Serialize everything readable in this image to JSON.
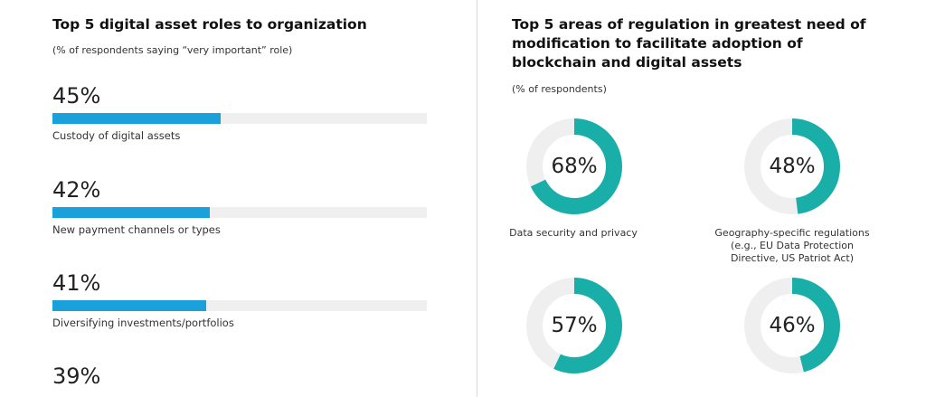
{
  "left_panel": {
    "title": "Top 5 digital asset roles to organization",
    "subtitle": "(% of respondents saying “very important” role)"
  },
  "right_panel": {
    "title_lines": [
      "Top 5 areas of regulation in greatest need of",
      "modification to facilitate adoption of",
      "blockchain and digital assets"
    ],
    "subtitle": "(% of respondents)"
  },
  "colors": {
    "bar_fill": "#1aa0db",
    "bar_track": "#efefef",
    "donut_fill": "#1aaea8",
    "donut_track": "#efefef",
    "divider": "#d9d9d9"
  },
  "chart_data": [
    {
      "type": "bar",
      "title": "Top 5 digital asset roles to organization",
      "subtitle": "(% of respondents saying “very important” role)",
      "categories": [
        "Custody of digital assets",
        "New payment channels or types",
        "Diversifying investments/portfolios",
        ""
      ],
      "values": [
        45,
        42,
        41,
        39
      ],
      "value_labels": [
        "45%",
        "42%",
        "41%",
        "39%"
      ],
      "ylim": [
        0,
        100
      ]
    },
    {
      "type": "pie",
      "title": "Top 5 areas of regulation in greatest need of modification to facilitate adoption of blockchain and digital assets",
      "subtitle": "(% of respondents)",
      "categories": [
        "Data security and privacy",
        "Geography-specific regulations (e.g., EU Data Protection Directive, US Patriot Act)",
        "",
        ""
      ],
      "label_lines": [
        [
          "Data security and privacy"
        ],
        [
          "Geography-specific regulations",
          "(e.g., EU Data Protection",
          "Directive, US Patriot Act)"
        ],
        [],
        []
      ],
      "values": [
        68,
        48,
        57,
        46
      ],
      "value_labels": [
        "68%",
        "48%",
        "57%",
        "46%"
      ]
    }
  ]
}
